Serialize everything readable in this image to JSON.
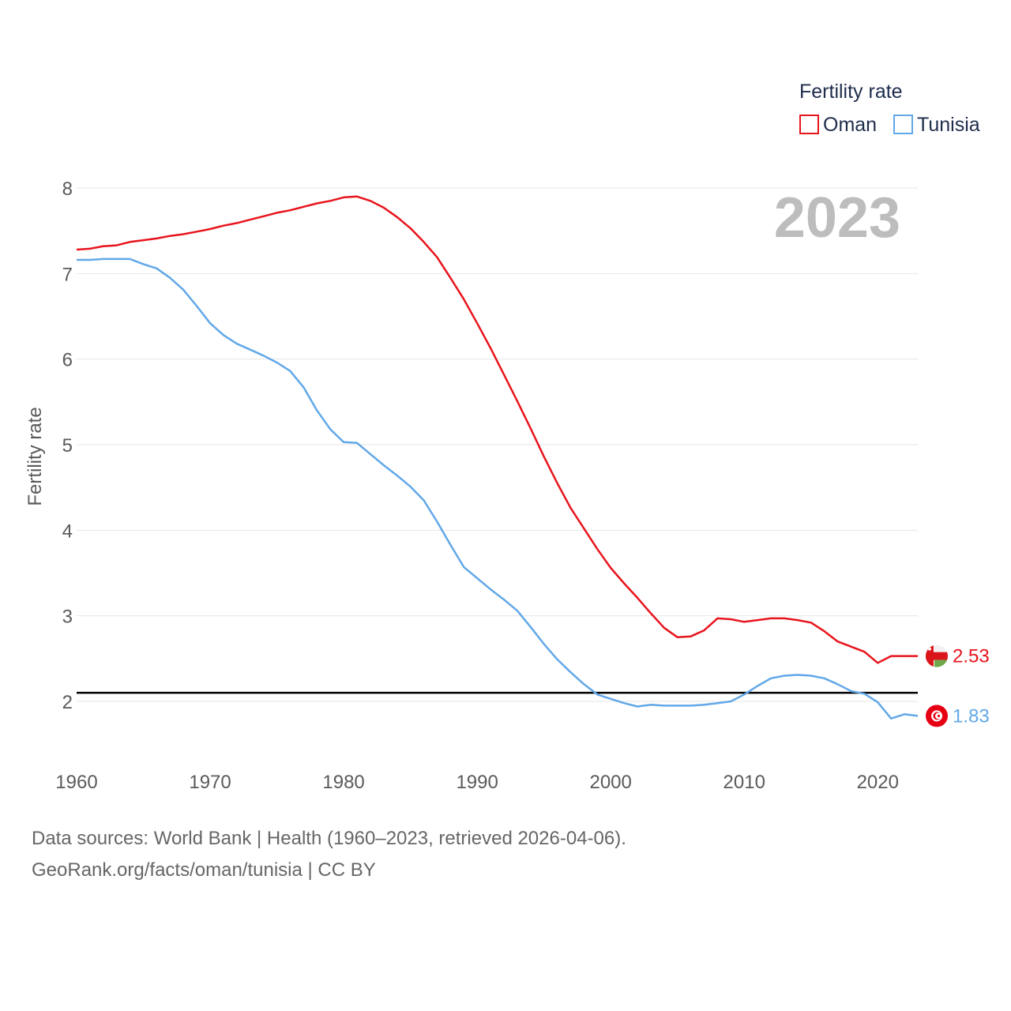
{
  "chart_data": {
    "type": "line",
    "title": "Fertility rate",
    "ylabel": "Fertility rate",
    "xlabel": "",
    "year_label": "2023",
    "xlim": [
      1960,
      2023
    ],
    "ylim": [
      1.5,
      8.3
    ],
    "x_ticks": [
      1960,
      1970,
      1980,
      1990,
      2000,
      2010,
      2020
    ],
    "y_ticks": [
      2,
      3,
      4,
      5,
      6,
      7,
      8
    ],
    "reference_line": 2.1,
    "legend": {
      "title": "Fertility rate",
      "position": "top-right"
    },
    "series": [
      {
        "name": "Oman",
        "color": "#e8141c",
        "end_label": "2.53",
        "x": [
          1960,
          1961,
          1962,
          1963,
          1964,
          1965,
          1966,
          1967,
          1968,
          1969,
          1970,
          1971,
          1972,
          1973,
          1974,
          1975,
          1976,
          1977,
          1978,
          1979,
          1980,
          1981,
          1982,
          1983,
          1984,
          1985,
          1986,
          1987,
          1988,
          1989,
          1990,
          1991,
          1992,
          1993,
          1994,
          1995,
          1996,
          1997,
          1998,
          1999,
          2000,
          2001,
          2002,
          2003,
          2004,
          2005,
          2006,
          2007,
          2008,
          2009,
          2010,
          2011,
          2012,
          2013,
          2014,
          2015,
          2016,
          2017,
          2018,
          2019,
          2020,
          2021,
          2022,
          2023
        ],
        "values": [
          7.28,
          7.29,
          7.32,
          7.33,
          7.37,
          7.39,
          7.41,
          7.44,
          7.46,
          7.49,
          7.52,
          7.56,
          7.59,
          7.63,
          7.67,
          7.71,
          7.74,
          7.78,
          7.82,
          7.85,
          7.89,
          7.9,
          7.85,
          7.77,
          7.66,
          7.53,
          7.37,
          7.19,
          6.95,
          6.7,
          6.42,
          6.13,
          5.82,
          5.51,
          5.19,
          4.86,
          4.55,
          4.26,
          4.02,
          3.78,
          3.56,
          3.38,
          3.21,
          3.03,
          2.86,
          2.75,
          2.76,
          2.83,
          2.97,
          2.96,
          2.93,
          2.95,
          2.97,
          2.97,
          2.95,
          2.92,
          2.82,
          2.7,
          2.64,
          2.58,
          2.45,
          2.53,
          2.53,
          2.53
        ]
      },
      {
        "name": "Tunisia",
        "color": "#62a8e8",
        "end_label": "1.83",
        "x": [
          1960,
          1961,
          1962,
          1963,
          1964,
          1965,
          1966,
          1967,
          1968,
          1969,
          1970,
          1971,
          1972,
          1973,
          1974,
          1975,
          1976,
          1977,
          1978,
          1979,
          1980,
          1981,
          1982,
          1983,
          1984,
          1985,
          1986,
          1987,
          1988,
          1989,
          1990,
          1991,
          1992,
          1993,
          1994,
          1995,
          1996,
          1997,
          1998,
          1999,
          2000,
          2001,
          2002,
          2003,
          2004,
          2005,
          2006,
          2007,
          2008,
          2009,
          2010,
          2011,
          2012,
          2013,
          2014,
          2015,
          2016,
          2017,
          2018,
          2019,
          2020,
          2021,
          2022,
          2023
        ],
        "values": [
          7.16,
          7.16,
          7.17,
          7.17,
          7.17,
          7.11,
          7.06,
          6.95,
          6.81,
          6.62,
          6.42,
          6.28,
          6.18,
          6.11,
          6.04,
          5.96,
          5.86,
          5.67,
          5.4,
          5.18,
          5.03,
          5.02,
          4.89,
          4.76,
          4.64,
          4.51,
          4.35,
          4.1,
          3.83,
          3.57,
          3.44,
          3.31,
          3.19,
          3.06,
          2.87,
          2.67,
          2.49,
          2.34,
          2.2,
          2.08,
          2.03,
          1.98,
          1.94,
          1.96,
          1.95,
          1.95,
          1.95,
          1.96,
          1.98,
          2.0,
          2.08,
          2.18,
          2.27,
          2.3,
          2.31,
          2.3,
          2.27,
          2.2,
          2.12,
          2.09,
          1.99,
          1.8,
          1.85,
          1.83
        ]
      }
    ]
  },
  "footer": {
    "sources_line": "Data sources: World Bank | Health (1960–2023, retrieved 2026-04-06).",
    "credit_line": "GeoRank.org/facts/oman/tunisia | CC BY"
  }
}
